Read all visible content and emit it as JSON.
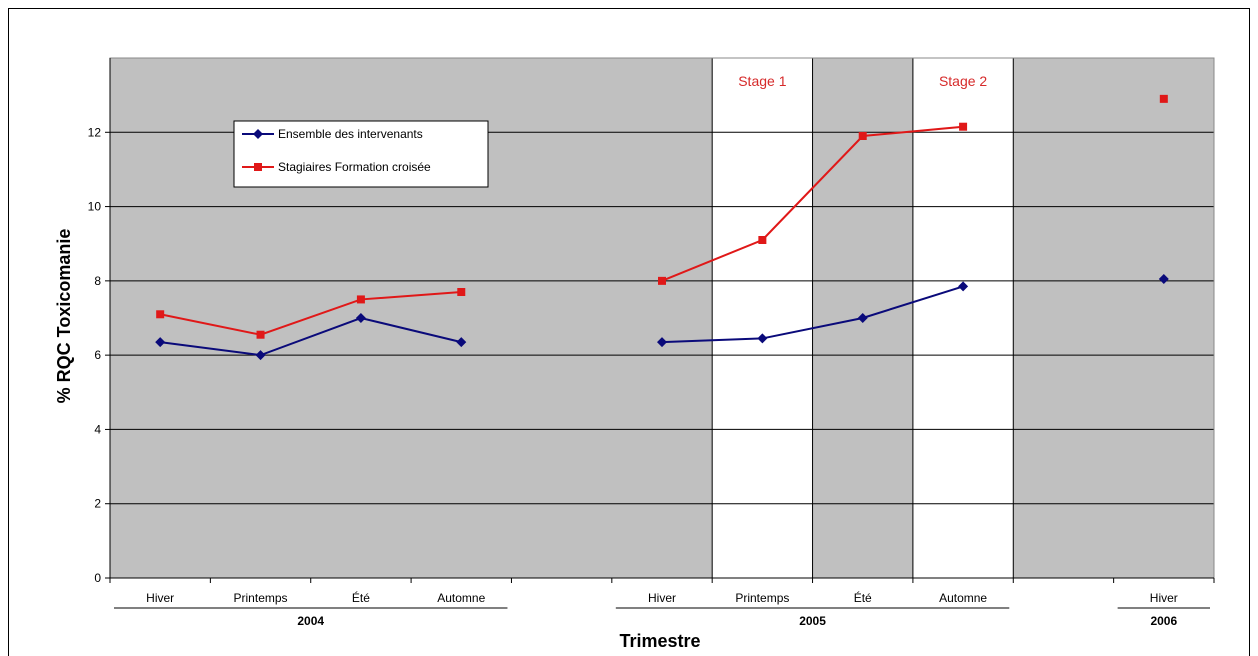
{
  "chart_data": {
    "type": "line",
    "ylabel": "% RQC Toxicomanie",
    "xlabel": "Trimestre",
    "ylim": [
      0,
      14
    ],
    "yticks": [
      0,
      2,
      4,
      6,
      8,
      10,
      12
    ],
    "grid": true,
    "legend_position": "top-left",
    "categories": [
      "Hiver",
      "Printemps",
      "Été",
      "Automne",
      "",
      "Hiver",
      "Printemps",
      "Été",
      "Automne",
      "",
      "Hiver"
    ],
    "years": [
      {
        "label": "2004",
        "start": 0,
        "end": 3
      },
      {
        "label": "2005",
        "start": 5,
        "end": 8
      },
      {
        "label": "2006",
        "start": 10,
        "end": 10
      }
    ],
    "bands": [
      {
        "label": "Stage 1",
        "category": 6
      },
      {
        "label": "Stage 2",
        "category": 8
      }
    ],
    "series": [
      {
        "name": "Ensemble des intervenants",
        "color": "#0a0a7a",
        "marker": "diamond",
        "values": [
          6.35,
          6.0,
          7.0,
          6.35,
          null,
          6.35,
          6.45,
          7.0,
          7.85,
          null,
          8.05
        ]
      },
      {
        "name": "Stagiaires Formation croisée",
        "color": "#e01818",
        "marker": "square",
        "values": [
          7.1,
          6.55,
          7.5,
          7.7,
          null,
          8.0,
          9.1,
          11.9,
          12.15,
          null,
          12.9
        ]
      }
    ],
    "colors": {
      "plot_background": "#c0c0c0",
      "band_background": "#ffffff",
      "band_text": "#d62a2a"
    }
  }
}
